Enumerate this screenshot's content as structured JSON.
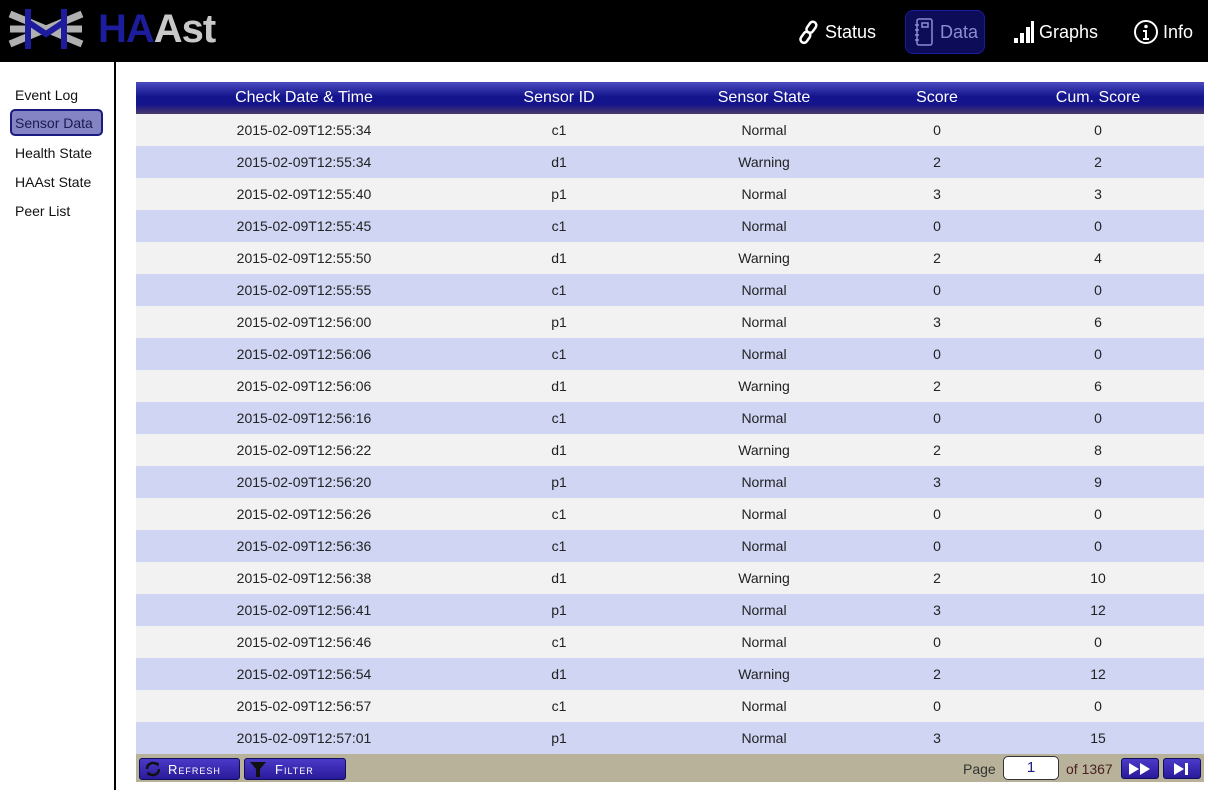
{
  "header": {
    "logo_ha": "HA",
    "logo_ast": "st",
    "logo_a": "A",
    "nav": [
      {
        "label": "Status",
        "icon": "link-icon"
      },
      {
        "label": "Data",
        "icon": "notebook-icon",
        "active": true
      },
      {
        "label": "Graphs",
        "icon": "bar-signal-icon"
      },
      {
        "label": "Info",
        "icon": "info-icon"
      }
    ]
  },
  "sidebar": {
    "items": [
      {
        "label": "Event Log"
      },
      {
        "label": "Sensor Data",
        "active": true
      },
      {
        "label": "Health State"
      },
      {
        "label": "HAAst State"
      },
      {
        "label": "Peer List"
      }
    ]
  },
  "table": {
    "columns": [
      "Check Date & Time",
      "Sensor ID",
      "Sensor State",
      "Score",
      "Cum. Score"
    ],
    "rows": [
      [
        "2015-02-09T12:55:34",
        "c1",
        "Normal",
        "0",
        "0"
      ],
      [
        "2015-02-09T12:55:34",
        "d1",
        "Warning",
        "2",
        "2"
      ],
      [
        "2015-02-09T12:55:40",
        "p1",
        "Normal",
        "3",
        "3"
      ],
      [
        "2015-02-09T12:55:45",
        "c1",
        "Normal",
        "0",
        "0"
      ],
      [
        "2015-02-09T12:55:50",
        "d1",
        "Warning",
        "2",
        "4"
      ],
      [
        "2015-02-09T12:55:55",
        "c1",
        "Normal",
        "0",
        "0"
      ],
      [
        "2015-02-09T12:56:00",
        "p1",
        "Normal",
        "3",
        "6"
      ],
      [
        "2015-02-09T12:56:06",
        "c1",
        "Normal",
        "0",
        "0"
      ],
      [
        "2015-02-09T12:56:06",
        "d1",
        "Warning",
        "2",
        "6"
      ],
      [
        "2015-02-09T12:56:16",
        "c1",
        "Normal",
        "0",
        "0"
      ],
      [
        "2015-02-09T12:56:22",
        "d1",
        "Warning",
        "2",
        "8"
      ],
      [
        "2015-02-09T12:56:20",
        "p1",
        "Normal",
        "3",
        "9"
      ],
      [
        "2015-02-09T12:56:26",
        "c1",
        "Normal",
        "0",
        "0"
      ],
      [
        "2015-02-09T12:56:36",
        "c1",
        "Normal",
        "0",
        "0"
      ],
      [
        "2015-02-09T12:56:38",
        "d1",
        "Warning",
        "2",
        "10"
      ],
      [
        "2015-02-09T12:56:41",
        "p1",
        "Normal",
        "3",
        "12"
      ],
      [
        "2015-02-09T12:56:46",
        "c1",
        "Normal",
        "0",
        "0"
      ],
      [
        "2015-02-09T12:56:54",
        "d1",
        "Warning",
        "2",
        "12"
      ],
      [
        "2015-02-09T12:56:57",
        "c1",
        "Normal",
        "0",
        "0"
      ],
      [
        "2015-02-09T12:57:01",
        "p1",
        "Normal",
        "3",
        "15"
      ]
    ]
  },
  "footer": {
    "refresh_label": "Refresh",
    "filter_label": "Filter",
    "page_label": "Page",
    "page_value": "1",
    "of_label": "of 1367"
  }
}
